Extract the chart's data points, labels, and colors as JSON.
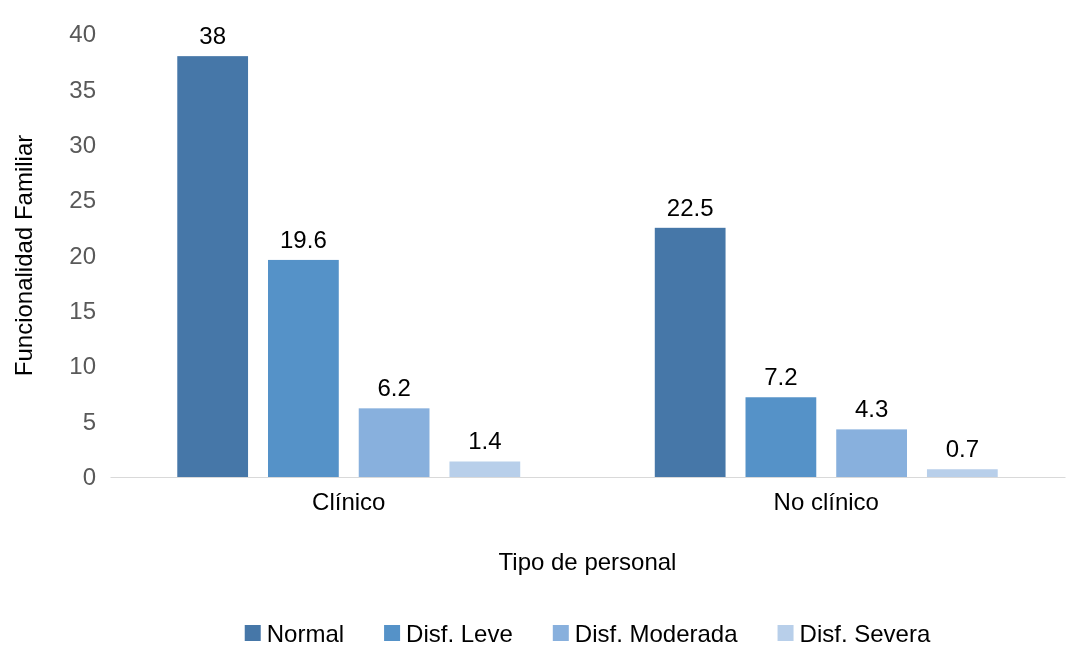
{
  "chart_data": {
    "type": "bar",
    "xlabel": "Tipo de personal",
    "ylabel": "Funcionalidad Familiar",
    "categories": [
      "Clínico",
      "No clínico"
    ],
    "series": [
      {
        "name": "Normal",
        "color": "#4677a8",
        "values": [
          38,
          22.5
        ]
      },
      {
        "name": "Disf. Leve",
        "color": "#5592c8",
        "values": [
          19.6,
          7.2
        ]
      },
      {
        "name": "Disf. Moderada",
        "color": "#88b0dd",
        "values": [
          6.2,
          4.3
        ]
      },
      {
        "name": "Disf. Severa",
        "color": "#b8cfea",
        "values": [
          1.4,
          0.7
        ]
      }
    ],
    "ylim": [
      0,
      40
    ],
    "yticks": [
      0,
      5,
      10,
      15,
      20,
      25,
      30,
      35,
      40
    ],
    "grid": false,
    "legend": "bottom",
    "data_labels": true
  }
}
